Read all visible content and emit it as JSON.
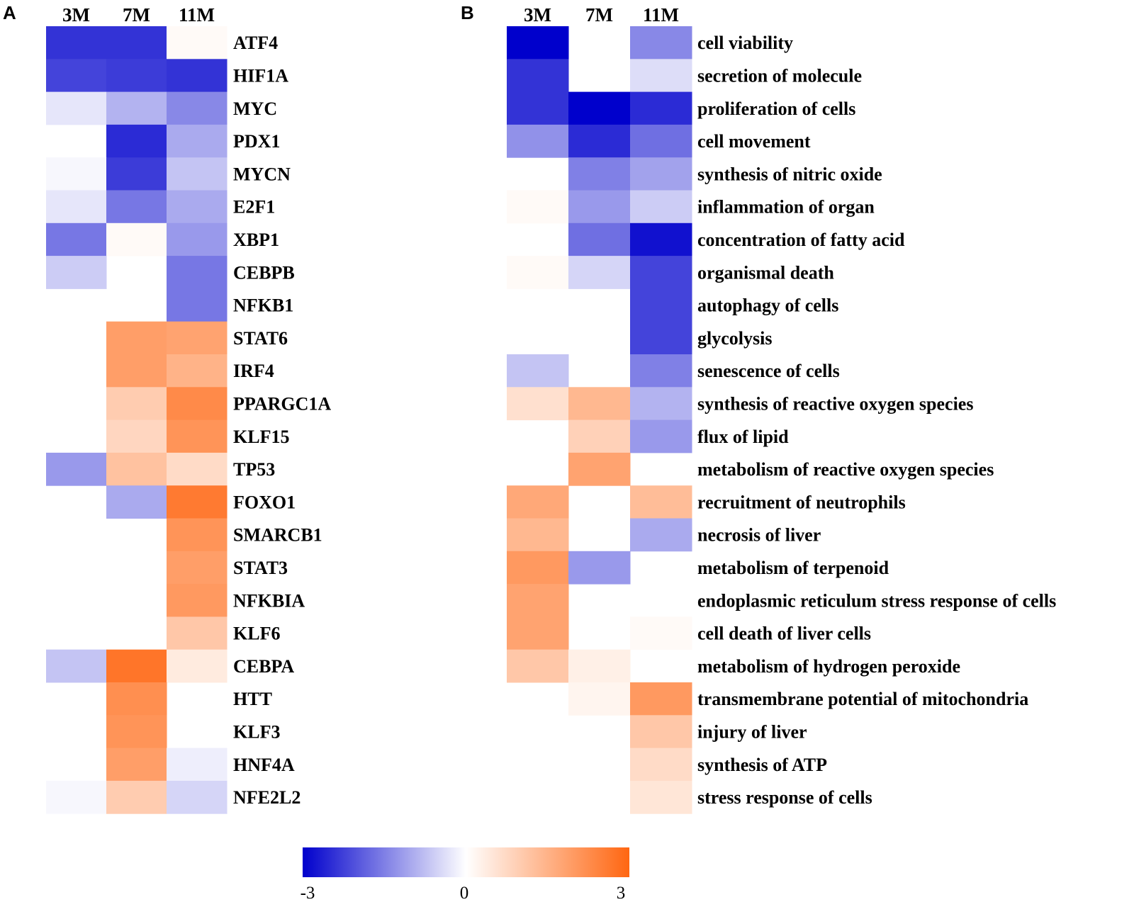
{
  "chart_data": [
    {
      "type": "heatmap",
      "panel": "A",
      "columns": [
        "3M",
        "7M",
        "11M"
      ],
      "rows": [
        "ATF4",
        "HIF1A",
        "MYC",
        "PDX1",
        "MYCN",
        "E2F1",
        "XBP1",
        "CEBPB",
        "NFKB1",
        "STAT6",
        "IRF4",
        "PPARGC1A",
        "KLF15",
        "TP53",
        "FOXO1",
        "SMARCB1",
        "STAT3",
        "NFKBIA",
        "KLF6",
        "CEBPA",
        "HTT",
        "KLF3",
        "HNF4A",
        "NFE2L2"
      ],
      "values": [
        [
          -2.4,
          -2.4,
          0.1
        ],
        [
          -2.2,
          -2.3,
          -2.4
        ],
        [
          -0.3,
          -0.9,
          -1.4
        ],
        [
          null,
          -2.5,
          -1.0
        ],
        [
          -0.1,
          -2.3,
          -0.7
        ],
        [
          -0.3,
          -1.6,
          -1.0
        ],
        [
          -1.6,
          0.1,
          -1.2
        ],
        [
          -0.6,
          null,
          -1.6
        ],
        [
          null,
          null,
          -1.6
        ],
        [
          null,
          1.9,
          1.8
        ],
        [
          null,
          1.9,
          1.5
        ],
        [
          null,
          1.0,
          2.3
        ],
        [
          null,
          0.8,
          2.1
        ],
        [
          -1.2,
          1.2,
          0.7
        ],
        [
          null,
          -1.0,
          2.6
        ],
        [
          null,
          null,
          2.1
        ],
        [
          null,
          null,
          1.9
        ],
        [
          null,
          null,
          2.0
        ],
        [
          null,
          null,
          1.1
        ],
        [
          -0.7,
          2.7,
          0.4
        ],
        [
          null,
          2.2,
          null
        ],
        [
          null,
          2.1,
          null
        ],
        [
          null,
          1.9,
          -0.2
        ],
        [
          -0.1,
          1.0,
          -0.5
        ]
      ]
    },
    {
      "type": "heatmap",
      "panel": "B",
      "columns": [
        "3M",
        "7M",
        "11M"
      ],
      "rows": [
        "cell viability",
        "secretion of molecule",
        "proliferation of cells",
        "cell movement",
        "synthesis of nitric oxide",
        "inflammation of organ",
        "concentration of fatty acid",
        "organismal death",
        "autophagy of cells",
        "glycolysis",
        "senescence of cells",
        "synthesis of reactive oxygen species",
        "flux of lipid",
        "metabolism of reactive oxygen species",
        "recruitment of neutrophils",
        "necrosis of liver",
        "metabolism of terpenoid",
        "endoplasmic reticulum stress response of cells",
        "cell death of liver cells",
        "metabolism of hydrogen peroxide",
        "transmembrane potential of mitochondria",
        "injury of liver",
        "synthesis of ATP",
        "stress response of cells"
      ],
      "values": [
        [
          -3.0,
          null,
          -1.4
        ],
        [
          -2.4,
          null,
          -0.4
        ],
        [
          -2.4,
          -3.0,
          -2.5
        ],
        [
          -1.3,
          -2.5,
          -1.7
        ],
        [
          null,
          -1.5,
          -1.1
        ],
        [
          0.1,
          -1.2,
          -0.6
        ],
        [
          null,
          -1.7,
          -2.8
        ],
        [
          0.1,
          -0.5,
          -2.2
        ],
        [
          null,
          null,
          -2.2
        ],
        [
          null,
          null,
          -2.2
        ],
        [
          -0.7,
          null,
          -1.5
        ],
        [
          0.6,
          1.4,
          -0.9
        ],
        [
          null,
          0.9,
          -1.2
        ],
        [
          null,
          1.8,
          null
        ],
        [
          1.7,
          null,
          1.3
        ],
        [
          1.4,
          null,
          -1.0
        ],
        [
          2.0,
          -1.2,
          null
        ],
        [
          1.8,
          null,
          null
        ],
        [
          1.8,
          null,
          0.1
        ],
        [
          1.1,
          0.3,
          null
        ],
        [
          null,
          0.2,
          2.0
        ],
        [
          null,
          null,
          1.1
        ],
        [
          null,
          null,
          0.7
        ],
        [
          null,
          null,
          0.5
        ]
      ]
    }
  ],
  "colorbar": {
    "min_label": "-3",
    "mid_label": "0",
    "max_label": "3",
    "min": -3,
    "max": 3,
    "negative_color": "#0000cc",
    "neutral_color": "#ffffff",
    "positive_color": "#ff6611"
  }
}
